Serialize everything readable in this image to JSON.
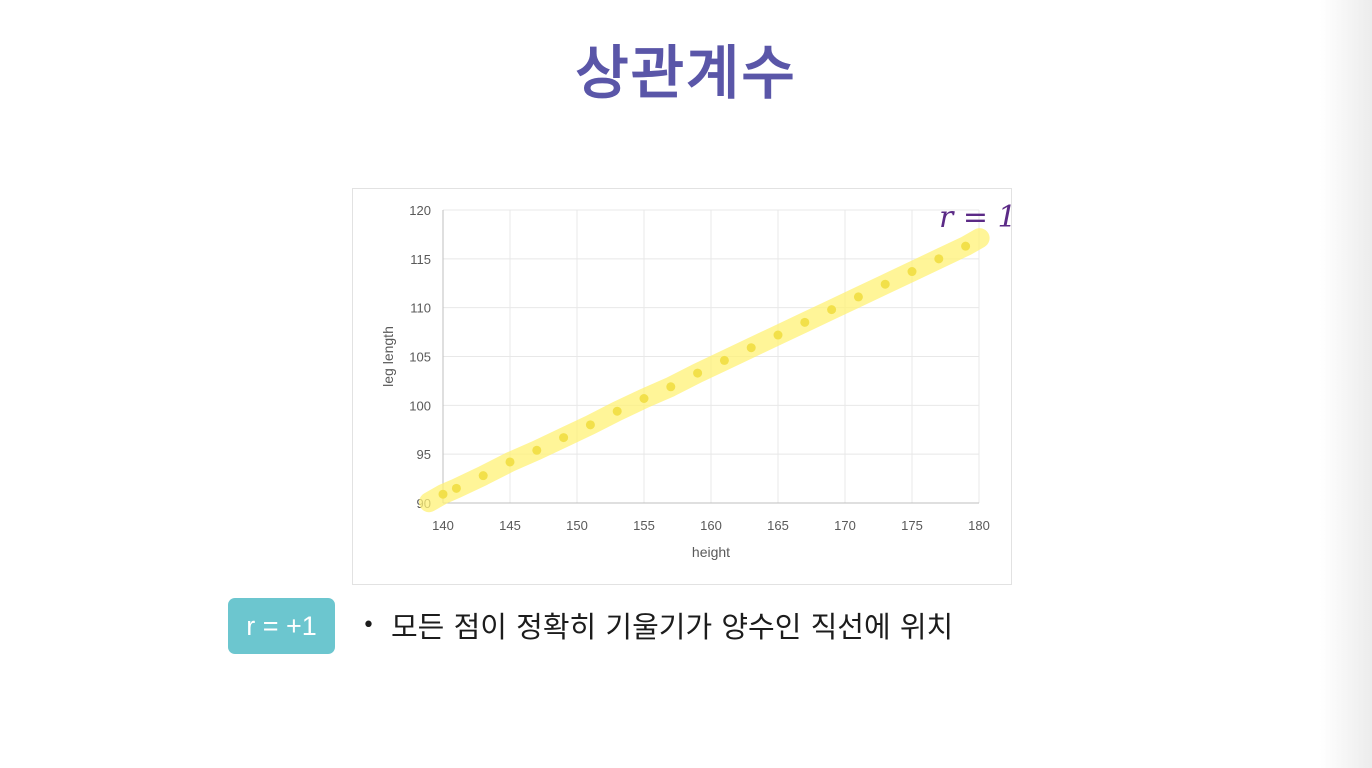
{
  "slide": {
    "title": "상관계수",
    "badge": "r = +1",
    "bullet": "모든 점이 정확히 기울기가 양수인 직선에 위치"
  },
  "colors": {
    "title": "#5a56a8",
    "badge": "#6cc6cf",
    "points": "#f2e04a",
    "highlight": "#fff176",
    "annotation": "#5b2a86"
  },
  "chart_data": {
    "type": "scatter",
    "title": "",
    "xlabel": "height",
    "ylabel": "leg length",
    "xlim": [
      140,
      180
    ],
    "ylim": [
      90,
      120
    ],
    "xticks": [
      140,
      145,
      150,
      155,
      160,
      165,
      170,
      175,
      180
    ],
    "yticks": [
      90,
      95,
      100,
      105,
      110,
      115,
      120
    ],
    "grid": true,
    "series": [
      {
        "x": [
          140,
          141,
          143,
          145,
          147,
          149,
          151,
          153,
          155,
          157,
          159,
          161,
          163,
          165,
          167,
          169,
          171,
          173,
          175,
          177,
          179
        ],
        "y": [
          90.9,
          91.5,
          92.8,
          94.2,
          95.4,
          96.7,
          98.0,
          99.4,
          100.7,
          101.9,
          103.3,
          104.6,
          105.9,
          107.2,
          108.5,
          109.8,
          111.1,
          112.4,
          113.7,
          115.0,
          116.3
        ]
      }
    ],
    "annotation": "r = 1"
  }
}
